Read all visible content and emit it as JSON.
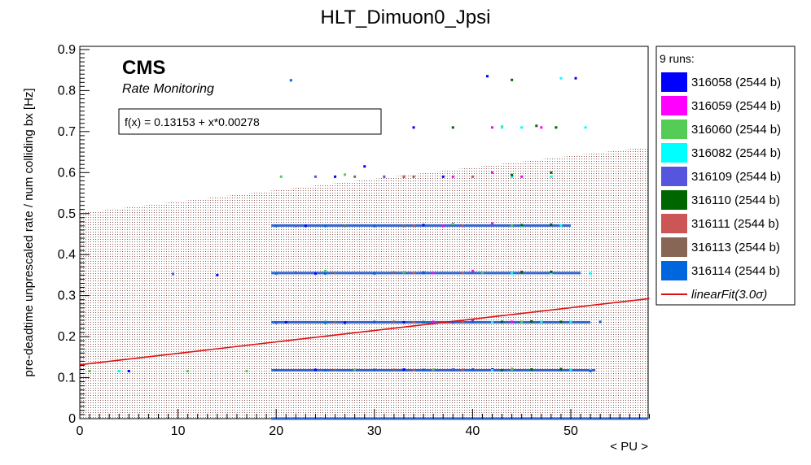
{
  "chart_data": {
    "type": "scatter",
    "title": "HLT_Dimuon0_Jpsi",
    "xlabel": "< PU >",
    "ylabel": "pre-deadtime unprescaled rate / num colliding bx [Hz]",
    "xlim": [
      0,
      58
    ],
    "ylim": [
      0,
      0.91
    ],
    "x_ticks": [
      0,
      10,
      20,
      30,
      40,
      50
    ],
    "y_ticks": [
      0,
      0.1,
      0.2,
      0.3,
      0.4,
      0.5,
      0.6,
      0.7,
      0.8,
      0.9
    ],
    "x_tick_labels": [
      "0",
      "10",
      "20",
      "30",
      "40",
      "50"
    ],
    "y_tick_labels": [
      "0",
      "0.1",
      "0.2",
      "0.3",
      "0.4",
      "0.5",
      "0.6",
      "0.7",
      "0.8",
      "0.9"
    ],
    "grid": false,
    "legend_position": "right, outside plot",
    "cms_label": "CMS",
    "cms_sublabel": "Rate Monitoring",
    "fit_box": "f(x) = 0.13153 + x*0.00278",
    "fit": {
      "name": "linearFit(3.0σ)",
      "intercept": 0.13153,
      "slope": 0.00278,
      "color": "#e01010",
      "band_sigma": 3.0,
      "band_halfwidth": 0.37
    },
    "legend_header": "9 runs:",
    "series": [
      {
        "name": "316058 (2544 b)",
        "color": "#0000ff",
        "points": [
          [
            20,
            0.118
          ],
          [
            24,
            0.119
          ],
          [
            28,
            0.119
          ],
          [
            33,
            0.12
          ],
          [
            38,
            0.12
          ],
          [
            42,
            0.12
          ],
          [
            21,
            0.235
          ],
          [
            27,
            0.234
          ],
          [
            33,
            0.235
          ],
          [
            38,
            0.235
          ],
          [
            24,
            0.354
          ],
          [
            30,
            0.355
          ],
          [
            35,
            0.356
          ],
          [
            23,
            0.47
          ],
          [
            30,
            0.47
          ],
          [
            35,
            0.472
          ],
          [
            26,
            0.59
          ],
          [
            33,
            0.59
          ],
          [
            37,
            0.59
          ],
          [
            29,
            0.615
          ],
          [
            34,
            0.71
          ],
          [
            41.5,
            0.835
          ],
          [
            50.5,
            0.83
          ],
          [
            5,
            0.116
          ],
          [
            14,
            0.35
          ]
        ]
      },
      {
        "name": "316059 (2544 b)",
        "color": "#ff00ff",
        "points": [
          [
            36,
            0.118
          ],
          [
            40,
            0.12
          ],
          [
            44,
            0.121
          ],
          [
            36,
            0.236
          ],
          [
            40,
            0.24
          ],
          [
            44,
            0.236
          ],
          [
            36,
            0.355
          ],
          [
            40,
            0.36
          ],
          [
            45,
            0.358
          ],
          [
            37,
            0.47
          ],
          [
            42,
            0.476
          ],
          [
            45,
            0.47
          ],
          [
            38,
            0.59
          ],
          [
            42,
            0.6
          ],
          [
            45,
            0.59
          ],
          [
            42,
            0.71
          ],
          [
            47,
            0.71
          ]
        ]
      },
      {
        "name": "316060 (2544 b)",
        "color": "#55cc55",
        "points": [
          [
            20,
            0.118
          ],
          [
            28,
            0.119
          ],
          [
            36,
            0.12
          ],
          [
            44,
            0.12
          ],
          [
            25,
            0.236
          ],
          [
            35,
            0.236
          ],
          [
            45,
            0.236
          ],
          [
            25,
            0.36
          ],
          [
            33,
            0.357
          ],
          [
            41,
            0.356
          ],
          [
            27,
            0.47
          ],
          [
            38,
            0.475
          ],
          [
            44,
            0.47
          ],
          [
            20.5,
            0.59
          ],
          [
            27,
            0.595
          ],
          [
            44,
            0.594
          ],
          [
            43,
            0.712
          ],
          [
            1,
            0.116
          ],
          [
            11,
            0.116
          ],
          [
            17,
            0.116
          ]
        ]
      },
      {
        "name": "316082 (2544 b)",
        "color": "#00ffff",
        "points": [
          [
            42,
            0.118
          ],
          [
            46,
            0.12
          ],
          [
            50,
            0.119
          ],
          [
            52,
            0.118
          ],
          [
            42,
            0.235
          ],
          [
            47,
            0.236
          ],
          [
            50,
            0.236
          ],
          [
            44,
            0.354
          ],
          [
            48,
            0.355
          ],
          [
            52,
            0.354
          ],
          [
            45,
            0.47
          ],
          [
            49,
            0.471
          ],
          [
            44,
            0.59
          ],
          [
            48,
            0.59
          ],
          [
            43,
            0.71
          ],
          [
            45,
            0.71
          ],
          [
            49,
            0.83
          ],
          [
            51.5,
            0.71
          ],
          [
            4,
            0.116
          ]
        ]
      },
      {
        "name": "316109 (2544 b)",
        "color": "#5555dd",
        "points": [
          [
            22,
            0.118
          ],
          [
            30,
            0.119
          ],
          [
            38,
            0.12
          ],
          [
            22,
            0.235
          ],
          [
            30,
            0.236
          ],
          [
            38,
            0.236
          ],
          [
            22,
            0.356
          ],
          [
            30,
            0.355
          ],
          [
            22,
            0.47
          ],
          [
            30,
            0.47
          ],
          [
            24,
            0.59
          ],
          [
            31,
            0.59
          ],
          [
            9.5,
            0.353
          ]
        ]
      },
      {
        "name": "316110 (2544 b)",
        "color": "#006600",
        "points": [
          [
            43,
            0.118
          ],
          [
            46,
            0.12
          ],
          [
            49,
            0.121
          ],
          [
            43,
            0.236
          ],
          [
            46,
            0.237
          ],
          [
            49,
            0.236
          ],
          [
            45,
            0.357
          ],
          [
            48,
            0.358
          ],
          [
            45,
            0.472
          ],
          [
            48,
            0.473
          ],
          [
            44,
            0.594
          ],
          [
            48,
            0.6
          ],
          [
            46.5,
            0.714
          ],
          [
            48.5,
            0.71
          ],
          [
            44,
            0.826
          ],
          [
            38,
            0.71
          ]
        ]
      },
      {
        "name": "316111 (2544 b)",
        "color": "#cc5555",
        "points": [
          [
            34,
            0.118
          ],
          [
            39,
            0.119
          ],
          [
            34,
            0.235
          ],
          [
            39,
            0.236
          ],
          [
            34,
            0.355
          ],
          [
            39,
            0.355
          ],
          [
            34,
            0.47
          ],
          [
            39,
            0.47
          ],
          [
            33,
            0.59
          ],
          [
            40,
            0.59
          ]
        ]
      },
      {
        "name": "316113 (2544 b)",
        "color": "#886655",
        "points": [
          [
            26,
            0.118
          ],
          [
            32,
            0.119
          ],
          [
            26,
            0.235
          ],
          [
            32,
            0.236
          ],
          [
            26,
            0.355
          ],
          [
            32,
            0.356
          ],
          [
            27,
            0.47
          ],
          [
            33,
            0.47
          ],
          [
            28,
            0.59
          ],
          [
            34,
            0.59
          ]
        ]
      },
      {
        "name": "316114 (2544 b)",
        "color": "#0066dd",
        "points": [
          [
            20,
            0.118
          ],
          [
            25,
            0.118
          ],
          [
            30,
            0.119
          ],
          [
            35,
            0.119
          ],
          [
            40,
            0.12
          ],
          [
            20,
            0.234
          ],
          [
            25,
            0.234
          ],
          [
            30,
            0.235
          ],
          [
            35,
            0.235
          ],
          [
            40,
            0.236
          ],
          [
            20,
            0.354
          ],
          [
            25,
            0.354
          ],
          [
            30,
            0.354
          ],
          [
            35,
            0.355
          ],
          [
            20,
            0.47
          ],
          [
            25,
            0.47
          ],
          [
            30,
            0.47
          ],
          [
            21.5,
            0.825
          ],
          [
            53,
            0.236
          ],
          [
            52,
            0.116
          ]
        ]
      }
    ],
    "bands": [
      {
        "xmin": 19.5,
        "xmax": 52.5,
        "y": 0.118,
        "color": "#3366cc"
      },
      {
        "xmin": 19.5,
        "xmax": 52,
        "y": 0.235,
        "color": "#3366cc"
      },
      {
        "xmin": 19.5,
        "xmax": 51,
        "y": 0.355,
        "color": "#3366cc"
      },
      {
        "xmin": 19.5,
        "xmax": 50,
        "y": 0.471,
        "color": "#3366cc"
      },
      {
        "xmin": 19.5,
        "xmax": 58,
        "y": 0.0,
        "color": "#3366cc"
      }
    ]
  }
}
